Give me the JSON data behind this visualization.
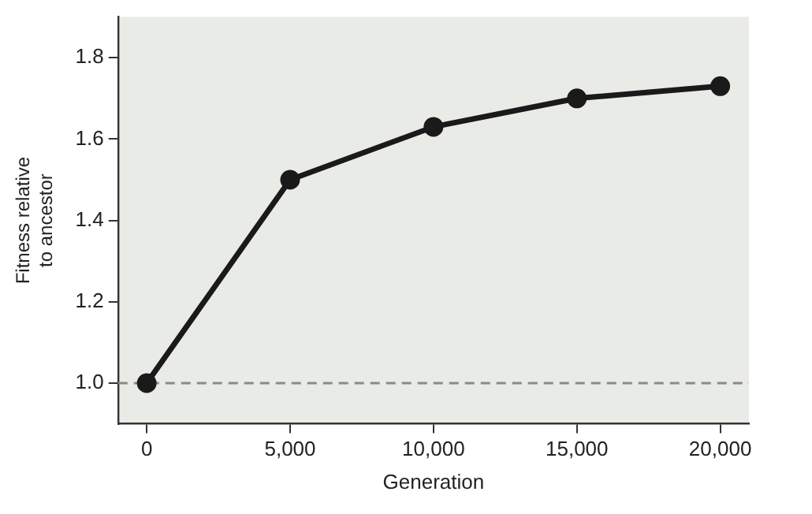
{
  "chart_data": {
    "type": "line",
    "xlabel": "Generation",
    "ylabel": "Fitness relative to ancestor",
    "x": [
      0,
      5000,
      10000,
      15000,
      20000
    ],
    "series": [
      {
        "color": "#1a1a1a",
        "values": [
          1.0,
          1.5,
          1.63,
          1.7,
          1.73
        ]
      }
    ],
    "xlim": [
      -1000,
      21000
    ],
    "xticks": [
      {
        "value": 0,
        "label": "0"
      },
      {
        "value": 5000,
        "label": "5,000"
      },
      {
        "value": 10000,
        "label": "10,000"
      },
      {
        "value": 15000,
        "label": "15,000"
      },
      {
        "value": 20000,
        "label": "20,000"
      }
    ],
    "ylim": [
      0.9,
      1.9
    ],
    "yticks": [
      {
        "value": 1,
        "label": "1.0"
      },
      {
        "value": 1.2,
        "label": "1.2"
      },
      {
        "value": 1.4,
        "label": "1.4"
      },
      {
        "value": 1.6,
        "label": "1.6"
      },
      {
        "value": 1.8,
        "label": "1.8"
      }
    ],
    "ref_lines": [
      {
        "axis": "y",
        "value": 1,
        "color": "#8a8a8a",
        "line_style": "dashed"
      }
    ],
    "grid": false,
    "legend": false,
    "marker": "circle",
    "line_style": "solid"
  }
}
